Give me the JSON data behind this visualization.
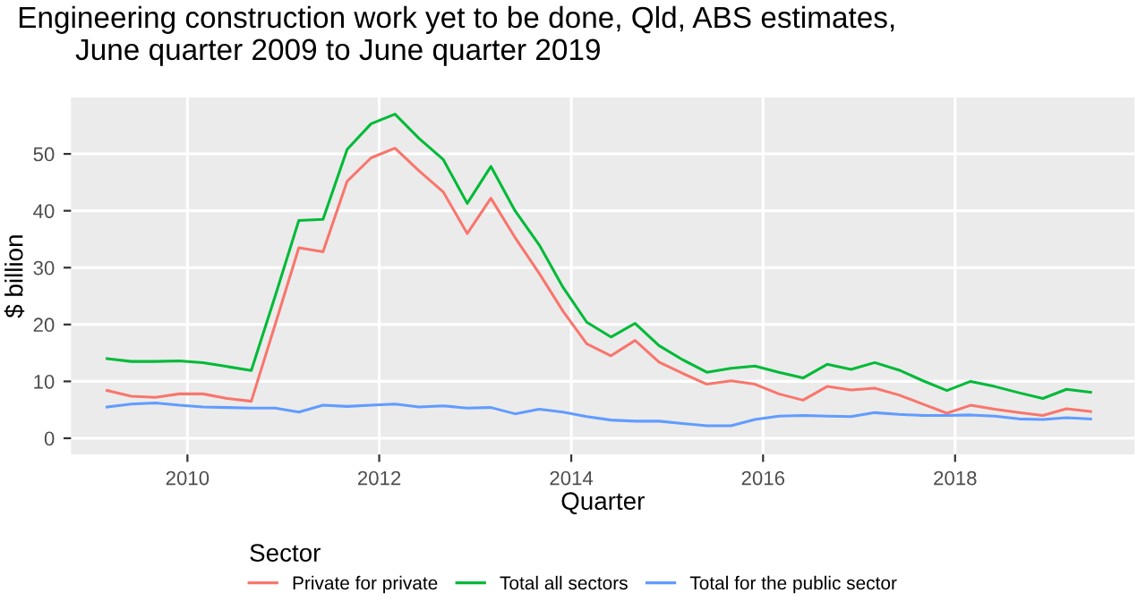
{
  "chart_data": {
    "type": "line",
    "title": "Engineering construction work yet to be done, Qld, ABS estimates,\n       June quarter 2009 to June quarter 2019",
    "xlabel": "Quarter",
    "ylabel": "$ billion",
    "legend_title": "Sector",
    "legend": "bottom",
    "grid": true,
    "line_style": "solid",
    "marker": "none",
    "x": [
      "2009-03",
      "2009-06",
      "2009-09",
      "2009-12",
      "2010-03",
      "2010-06",
      "2010-09",
      "2010-12",
      "2011-03",
      "2011-06",
      "2011-09",
      "2011-12",
      "2012-03",
      "2012-06",
      "2012-09",
      "2012-12",
      "2013-03",
      "2013-06",
      "2013-09",
      "2013-12",
      "2014-03",
      "2014-06",
      "2014-09",
      "2014-12",
      "2015-03",
      "2015-06",
      "2015-09",
      "2015-12",
      "2016-03",
      "2016-06",
      "2016-09",
      "2016-12",
      "2017-03",
      "2017-06",
      "2017-09",
      "2017-12",
      "2018-03",
      "2018-06",
      "2018-09",
      "2018-12",
      "2019-03",
      "2019-06"
    ],
    "series": [
      {
        "name": "Private for private",
        "color": "#f8766d",
        "values": [
          8.4,
          7.4,
          7.2,
          7.8,
          7.8,
          7.0,
          6.5,
          20,
          33.5,
          32.8,
          45.2,
          49.3,
          51,
          47,
          43.3,
          36,
          42.2,
          35.3,
          29,
          22.3,
          16.6,
          14.5,
          17.2,
          13.4,
          11.4,
          9.5,
          10.1,
          9.5,
          7.8,
          6.7,
          9.1,
          8.5,
          8.8,
          7.6,
          6.0,
          4.4,
          5.8,
          5.1,
          4.5,
          4.0,
          5.2,
          4.7
        ]
      },
      {
        "name": "Total all sectors",
        "color": "#00ba38",
        "values": [
          14.0,
          13.5,
          13.5,
          13.6,
          13.3,
          12.6,
          11.9,
          25,
          38.3,
          38.5,
          50.8,
          55.3,
          57,
          52.7,
          49,
          41.3,
          47.8,
          40,
          34,
          26.5,
          20.4,
          17.8,
          20.2,
          16.3,
          13.8,
          11.6,
          12.3,
          12.7,
          11.6,
          10.6,
          13,
          12.1,
          13.3,
          12,
          10.1,
          8.4,
          10,
          9.1,
          8.0,
          7.0,
          8.6,
          8.1
        ]
      },
      {
        "name": "Total for the public sector",
        "color": "#619cff",
        "values": [
          5.5,
          6.0,
          6.2,
          5.8,
          5.5,
          5.4,
          5.3,
          5.3,
          4.6,
          5.8,
          5.6,
          5.8,
          6.0,
          5.5,
          5.7,
          5.3,
          5.4,
          4.3,
          5.1,
          4.6,
          3.8,
          3.2,
          3.0,
          3.0,
          2.6,
          2.2,
          2.2,
          3.3,
          3.9,
          4.0,
          3.9,
          3.8,
          4.5,
          4.2,
          4.0,
          4.0,
          4.1,
          3.9,
          3.4,
          3.3,
          3.6,
          3.4
        ]
      }
    ],
    "xlim": [
      "2008-10-15",
      "2019-11-15"
    ],
    "xticks": [
      {
        "value": "2010",
        "label": "2010"
      },
      {
        "value": "2012",
        "label": "2012"
      },
      {
        "value": "2014",
        "label": "2014"
      },
      {
        "value": "2016",
        "label": "2016"
      },
      {
        "value": "2018",
        "label": "2018"
      }
    ],
    "ylim": [
      -2.85,
      59.9
    ],
    "yticks": [
      0,
      10,
      20,
      30,
      40,
      50
    ]
  }
}
